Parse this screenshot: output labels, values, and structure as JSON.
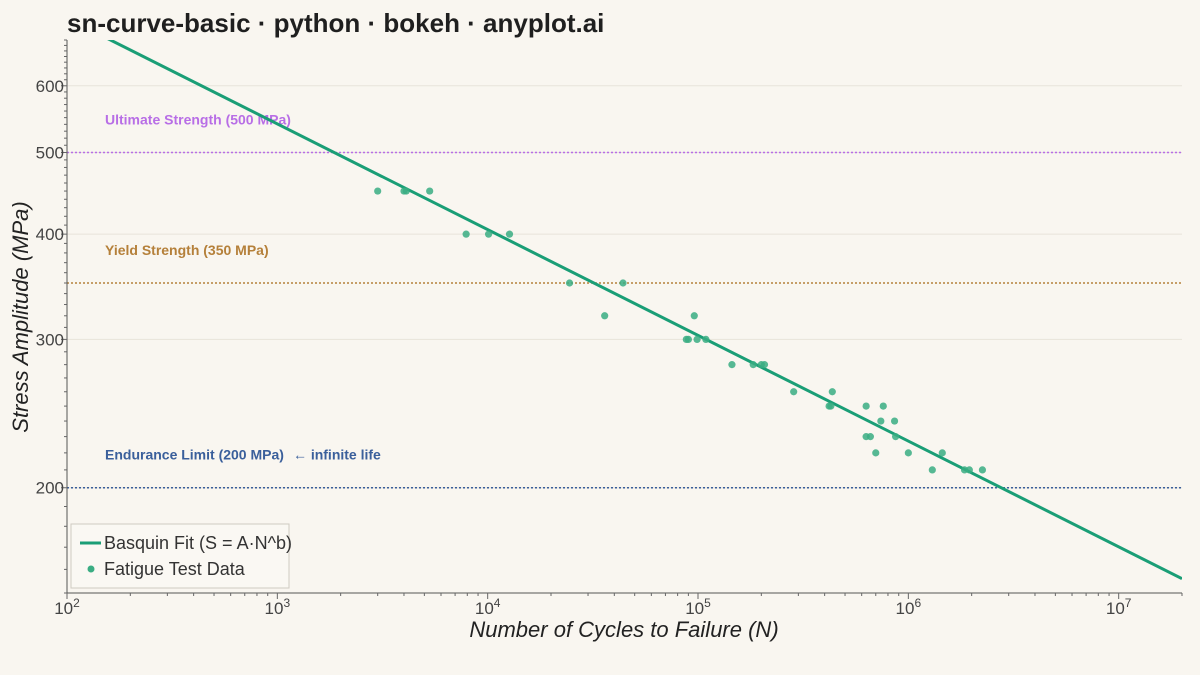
{
  "title": "sn-curve-basic · python · bokeh · anyplot.ai",
  "chart_data": {
    "type": "scatter",
    "xscale": "log",
    "yscale": "log",
    "xlabel": "Number of Cycles to Failure (N)",
    "ylabel": "Stress Amplitude (MPa)",
    "xlim": [
      100,
      20000000
    ],
    "ylim": [
      150,
      680
    ],
    "x_ticks": [
      {
        "value": 100,
        "base": "10",
        "exp": "2"
      },
      {
        "value": 1000,
        "base": "10",
        "exp": "3"
      },
      {
        "value": 10000,
        "base": "10",
        "exp": "4"
      },
      {
        "value": 100000,
        "base": "10",
        "exp": "5"
      },
      {
        "value": 1000000,
        "base": "10",
        "exp": "6"
      },
      {
        "value": 10000000,
        "base": "10",
        "exp": "7"
      }
    ],
    "y_ticks": [
      {
        "value": 200,
        "label": "200"
      },
      {
        "value": 300,
        "label": "300"
      },
      {
        "value": 400,
        "label": "400"
      },
      {
        "value": 500,
        "label": "500"
      },
      {
        "value": 600,
        "label": "600"
      }
    ],
    "grid": true,
    "colors": {
      "fit": "#1a9e76",
      "points": "#3aad83",
      "ultimate": "#b86ee6",
      "yield": "#b5803a",
      "endurance": "#3a5f9b"
    },
    "reference_lines": [
      {
        "name": "ultimate",
        "value": 500,
        "label": "Ultimate Strength (500 MPa)",
        "extra": ""
      },
      {
        "name": "yield",
        "value": 350,
        "label": "Yield Strength (350 MPa)",
        "extra": ""
      },
      {
        "name": "endurance",
        "value": 200,
        "label": "Endurance Limit (200 MPa)",
        "extra": "← infinite life"
      }
    ],
    "fit": {
      "name": "Basquin Fit (S = A·N^b)",
      "points": [
        [
          150,
          686
        ],
        [
          20000000,
          156
        ]
      ]
    },
    "series": [
      {
        "name": "Fatigue Test Data",
        "points": [
          [
            3000,
            450
          ],
          [
            4000,
            450
          ],
          [
            4100,
            450
          ],
          [
            5300,
            450
          ],
          [
            7900,
            400
          ],
          [
            10100,
            400
          ],
          [
            12700,
            400
          ],
          [
            24500,
            350
          ],
          [
            44000,
            350
          ],
          [
            36000,
            320
          ],
          [
            88000,
            300
          ],
          [
            90000,
            300
          ],
          [
            96000,
            320
          ],
          [
            99000,
            300
          ],
          [
            109000,
            300
          ],
          [
            145000,
            280
          ],
          [
            183000,
            280
          ],
          [
            200000,
            280
          ],
          [
            207000,
            280
          ],
          [
            285000,
            260
          ],
          [
            420000,
            250
          ],
          [
            428000,
            250
          ],
          [
            435000,
            260
          ],
          [
            630000,
            250
          ],
          [
            630000,
            230
          ],
          [
            660000,
            230
          ],
          [
            700000,
            220
          ],
          [
            740000,
            240
          ],
          [
            760000,
            250
          ],
          [
            860000,
            240
          ],
          [
            870000,
            230
          ],
          [
            1000000,
            220
          ],
          [
            1300000,
            210
          ],
          [
            1450000,
            220
          ],
          [
            1850000,
            210
          ],
          [
            1950000,
            210
          ],
          [
            2250000,
            210
          ]
        ]
      }
    ],
    "legend": {
      "position": "bottom-left",
      "fit_label": "Basquin Fit (S = A·N^b)",
      "data_label": "Fatigue Test Data"
    }
  }
}
